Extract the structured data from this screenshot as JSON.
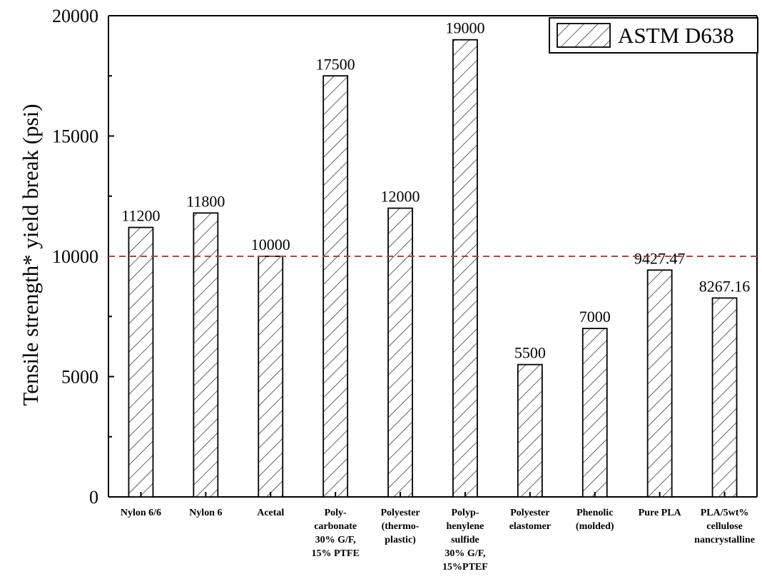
{
  "chart_data": {
    "type": "bar",
    "categories": [
      [
        "Nylon 6/6"
      ],
      [
        "Nylon 6"
      ],
      [
        "Acetal"
      ],
      [
        "Poly-",
        "carbonate",
        "30% G/F,",
        "15% PTFE"
      ],
      [
        "Polyester",
        "(thermo-",
        "plastic)"
      ],
      [
        "Polyp-",
        "henylene",
        "sulfide",
        "30% G/F,",
        "15%PTEF"
      ],
      [
        "Polyester",
        "elastomer"
      ],
      [
        "Phenolic",
        "(molded)"
      ],
      [
        "Pure PLA"
      ],
      [
        "PLA/5wt%",
        "cellulose",
        "nancrystalline"
      ]
    ],
    "values": [
      11200,
      11800,
      10000,
      17500,
      12000,
      19000,
      5500,
      7000,
      9427.47,
      8267.16
    ],
    "data_labels": [
      "11200",
      "11800",
      "10000",
      "17500",
      "12000",
      "19000",
      "5500",
      "7000",
      "9427.47",
      "8267.16"
    ],
    "series": [
      {
        "name": "ASTM D638",
        "values": [
          11200,
          11800,
          10000,
          17500,
          12000,
          19000,
          5500,
          7000,
          9427.47,
          8267.16
        ]
      }
    ],
    "ylabel": "Tensile strength* yield break (psi)",
    "xlabel": "",
    "title": "",
    "ylim": [
      0,
      20000
    ],
    "yticks": [
      0,
      5000,
      10000,
      15000,
      20000
    ],
    "reference_line": {
      "value": 10000,
      "style": "dashed",
      "color": "#b5443c"
    },
    "bar_fill": "hatched",
    "legend_position": "top-right",
    "grid": false
  }
}
